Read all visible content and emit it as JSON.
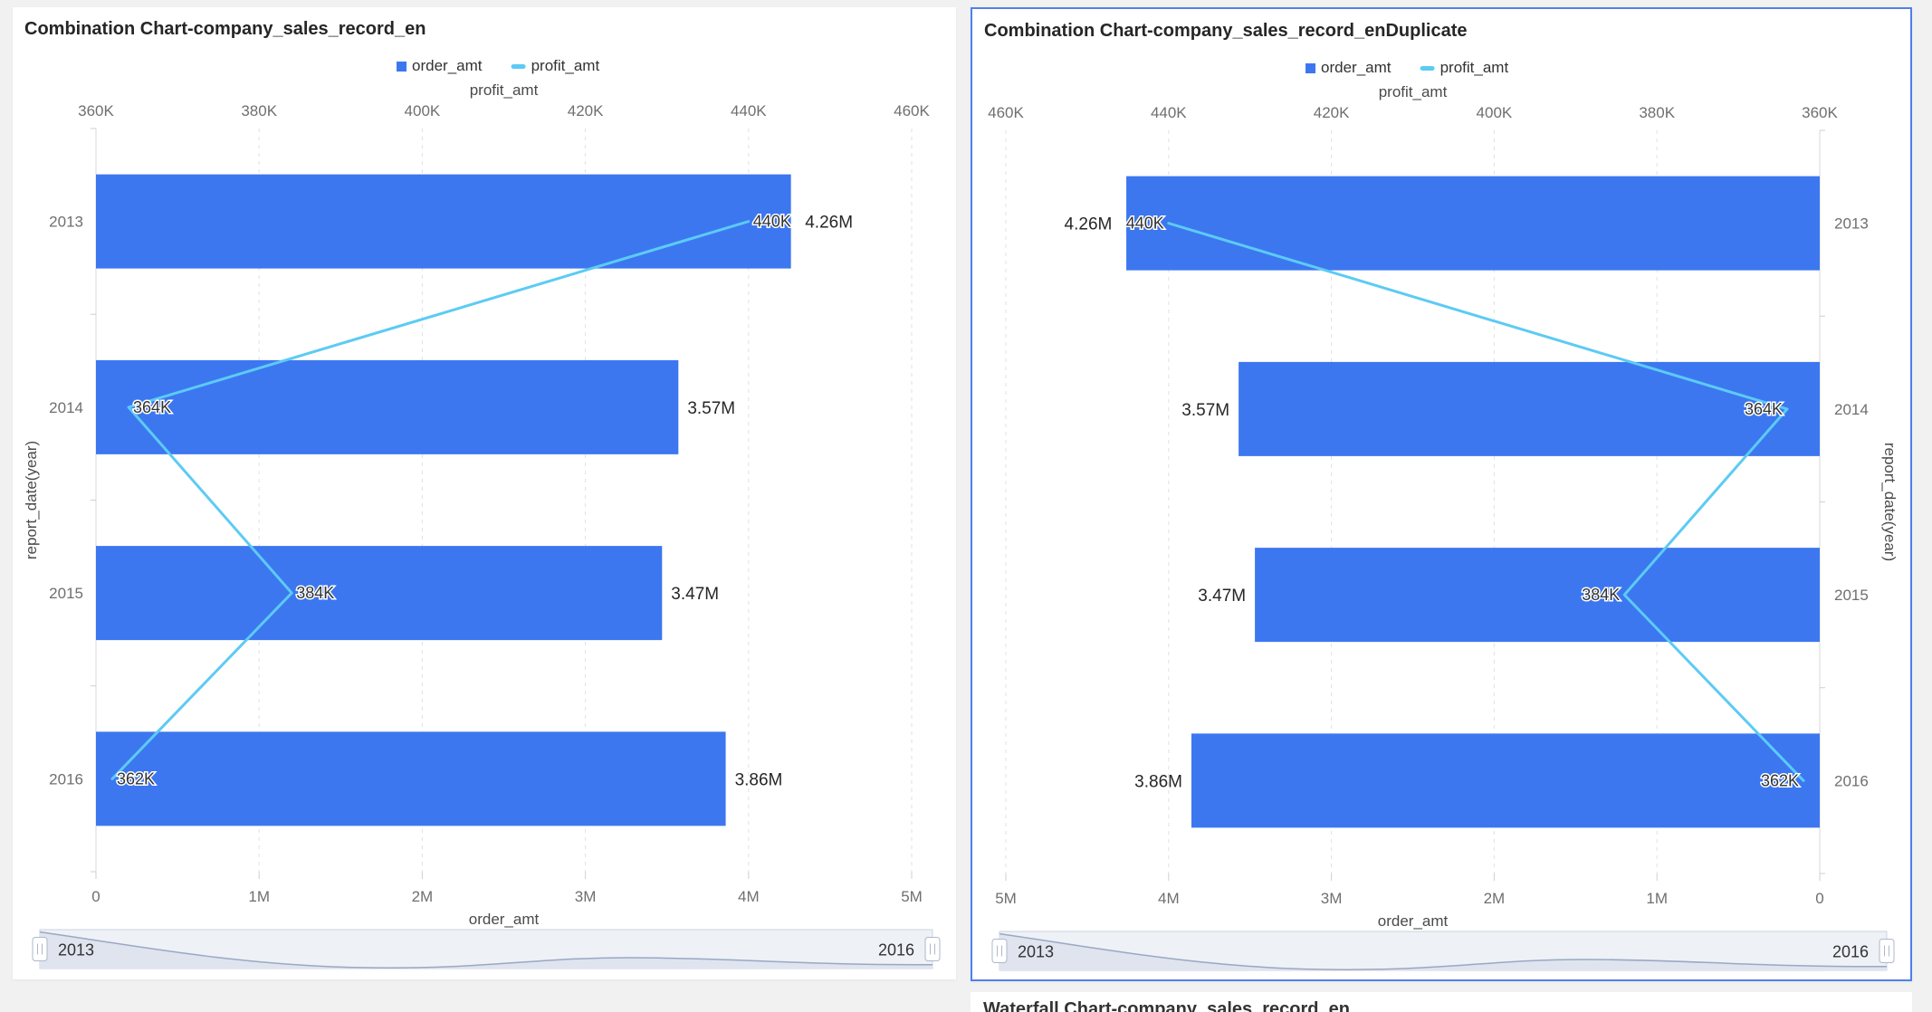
{
  "page": {
    "background": "#f1f1f2"
  },
  "colors": {
    "bar": "#3C77F0",
    "line": "#5CCBF4",
    "selected_border": "#4E80EC",
    "gridline": "#e2e2e2",
    "axis_line": "#d8d8d8",
    "tick_text": "#6f6f6f",
    "axis_title_text": "#4a4a4a",
    "data_label_text": "#262626",
    "slider_band": "#eef1f6",
    "slider_border": "#ccd3e0",
    "slider_wave_fill": "#dfe4ef",
    "slider_wave_line": "#9aa8c4"
  },
  "chart_data": [
    {
      "type": "bar",
      "subtype": "combination-horizontal-bar-line",
      "title": "Combination Chart-company_sales_record_en",
      "mirrored": false,
      "categories": [
        "2013",
        "2014",
        "2015",
        "2016"
      ],
      "series": [
        {
          "name": "order_amt",
          "type": "bar",
          "axis": "bottom",
          "values": [
            4260000,
            3570000,
            3470000,
            3860000
          ],
          "labels": [
            "4.26M",
            "3.57M",
            "3.47M",
            "3.86M"
          ]
        },
        {
          "name": "profit_amt",
          "type": "line",
          "axis": "top",
          "values": [
            440000,
            364000,
            384000,
            362000
          ],
          "labels": [
            "440K",
            "364K",
            "384K",
            "362K"
          ]
        }
      ],
      "axes": {
        "top": {
          "title": "profit_amt",
          "min": 360000,
          "max": 460000,
          "ticks": [
            "360K",
            "380K",
            "400K",
            "420K",
            "440K",
            "460K"
          ]
        },
        "bottom": {
          "title": "order_amt",
          "min": 0,
          "max": 5000000,
          "ticks": [
            "0",
            "1M",
            "2M",
            "3M",
            "4M",
            "5M"
          ]
        },
        "category": {
          "title": "report_date(year)",
          "position": "left"
        }
      },
      "legend": [
        "order_amt",
        "profit_amt"
      ],
      "slider": {
        "start_label": "2013",
        "end_label": "2016"
      }
    },
    {
      "type": "bar",
      "subtype": "combination-horizontal-bar-line",
      "title": "Combination Chart-company_sales_record_enDuplicate",
      "mirrored": true,
      "categories": [
        "2013",
        "2014",
        "2015",
        "2016"
      ],
      "series": [
        {
          "name": "order_amt",
          "type": "bar",
          "axis": "bottom",
          "values": [
            4260000,
            3570000,
            3470000,
            3860000
          ],
          "labels": [
            "4.26M",
            "3.57M",
            "3.47M",
            "3.86M"
          ]
        },
        {
          "name": "profit_amt",
          "type": "line",
          "axis": "top",
          "values": [
            440000,
            364000,
            384000,
            362000
          ],
          "labels": [
            "440K",
            "364K",
            "384K",
            "362K"
          ]
        }
      ],
      "axes": {
        "top": {
          "title": "profit_amt",
          "min": 360000,
          "max": 460000,
          "ticks": [
            "460K",
            "440K",
            "420K",
            "400K",
            "380K",
            "360K"
          ]
        },
        "bottom": {
          "title": "order_amt",
          "min": 0,
          "max": 5000000,
          "ticks": [
            "5M",
            "4M",
            "3M",
            "2M",
            "1M",
            "0"
          ]
        },
        "category": {
          "title": "report_date(year)",
          "position": "right"
        }
      },
      "legend": [
        "order_amt",
        "profit_amt"
      ],
      "slider": {
        "start_label": "2013",
        "end_label": "2016"
      }
    }
  ],
  "next_panel": {
    "title": "Waterfall Chart-company_sales_record_en"
  }
}
